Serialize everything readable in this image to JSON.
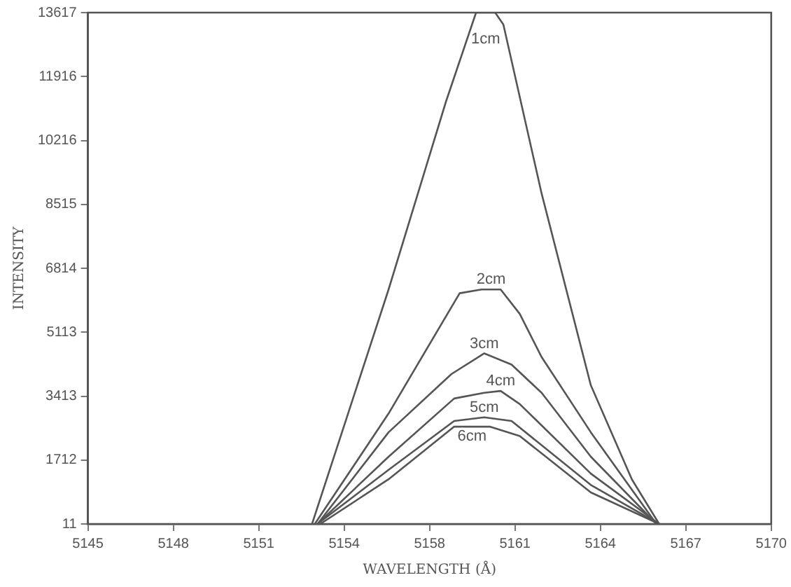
{
  "chart_data": {
    "type": "line",
    "xlabel": "WAVELENGTH (Å)",
    "ylabel": "INTENSITY",
    "xlim": [
      5145,
      5170
    ],
    "xticks": [
      5145,
      {
        "value": 5148.125,
        "label": "5148"
      },
      {
        "value": 5151.25,
        "label": "5151"
      },
      {
        "value": 5154.375,
        "label": "5154"
      },
      {
        "value": 5157.5,
        "label": "5158"
      },
      {
        "value": 5160.625,
        "label": "5161"
      },
      {
        "value": 5163.75,
        "label": "5164"
      },
      {
        "value": 5166.875,
        "label": "5167"
      },
      5170
    ],
    "ylim": [
      11,
      13617
    ],
    "yticks": [
      11,
      {
        "value": 1711.75,
        "label": "1712"
      },
      {
        "value": 3412.5,
        "label": "3413"
      },
      {
        "value": 5113.25,
        "label": "5113"
      },
      {
        "value": 6814,
        "label": "6814"
      },
      {
        "value": 8514.75,
        "label": "8515"
      },
      {
        "value": 10215.5,
        "label": "10216"
      },
      {
        "value": 11916.25,
        "label": "11916"
      },
      13617
    ],
    "grid": false,
    "marker": "none",
    "line_style": "solid",
    "legend": false,
    "series": [
      {
        "name": "1cm",
        "color": "#555555",
        "x": [
          5153.2,
          5156.0,
          5158.1,
          5159.2,
          5159.9,
          5160.2,
          5161.6,
          5163.4,
          5164.9,
          5165.9
        ],
        "values": [
          11,
          6250,
          11250,
          13617,
          13617,
          13300,
          8800,
          3700,
          1200,
          11
        ]
      },
      {
        "name": "2cm",
        "color": "#555555",
        "x": [
          5153.3,
          5156.0,
          5158.6,
          5159.4,
          5160.1,
          5160.8,
          5161.6,
          5163.4,
          5165.8
        ],
        "values": [
          11,
          2950,
          6150,
          6250,
          6250,
          5600,
          4450,
          2450,
          11
        ]
      },
      {
        "name": "3cm",
        "color": "#555555",
        "x": [
          5153.4,
          5156.0,
          5158.3,
          5159.5,
          5160.5,
          5161.6,
          5163.4,
          5165.8
        ],
        "values": [
          11,
          2450,
          4000,
          4550,
          4250,
          3500,
          1800,
          11
        ]
      },
      {
        "name": "4cm",
        "color": "#555555",
        "x": [
          5153.4,
          5156.0,
          5158.4,
          5159.5,
          5160.1,
          5160.8,
          5163.4,
          5165.9
        ],
        "values": [
          11,
          1800,
          3350,
          3500,
          3550,
          3200,
          1350,
          11
        ]
      },
      {
        "name": "5cm",
        "color": "#555555",
        "x": [
          5153.4,
          5156.0,
          5158.4,
          5159.5,
          5160.5,
          5163.4,
          5165.9
        ],
        "values": [
          11,
          1450,
          2750,
          2850,
          2750,
          1050,
          11
        ]
      },
      {
        "name": "6cm",
        "color": "#555555",
        "x": [
          5153.5,
          5156.0,
          5158.4,
          5159.7,
          5160.8,
          5163.4,
          5165.9
        ],
        "values": [
          11,
          1200,
          2600,
          2600,
          2350,
          850,
          11
        ]
      }
    ]
  }
}
